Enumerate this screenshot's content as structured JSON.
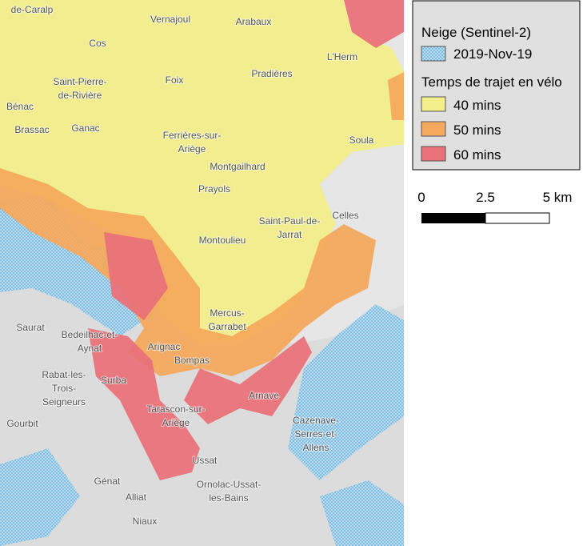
{
  "legend": {
    "snow_title": "Neige (Sentinel-2)",
    "snow_item": "2019-Nov-19",
    "travel_title": "Temps de trajet en vélo",
    "items": [
      "40 mins",
      "50 mins",
      "60 mins"
    ]
  },
  "scale": {
    "labels": [
      "0",
      "2.5",
      "5 km"
    ]
  },
  "places": [
    [
      "de-Caralp"
    ],
    [
      "Vernajoul"
    ],
    [
      "Arabaux"
    ],
    [
      "Cos"
    ],
    [
      "L'Herm"
    ],
    [
      "Saint-Pierre-",
      "de-Rivière"
    ],
    [
      "Foix"
    ],
    [
      "Pradières"
    ],
    [
      "Bénac"
    ],
    [
      "Brassac"
    ],
    [
      "Ganac"
    ],
    [
      "Ferrières-sur-",
      "Ariège"
    ],
    [
      "Soula"
    ],
    [
      "Montgailhard"
    ],
    [
      "Prayols"
    ],
    [
      "Saint-Paul-de-",
      "Jarrat"
    ],
    [
      "Celles"
    ],
    [
      "Montoulieu"
    ],
    [
      "Mercus-",
      "Garrabet"
    ],
    [
      "Saurat"
    ],
    [
      "Bedeilhac-et-",
      "Aynat"
    ],
    [
      "Arignac"
    ],
    [
      "Bompas"
    ],
    [
      "Rabat-les-",
      "Trois-",
      "Seigneurs"
    ],
    [
      "Surba"
    ],
    [
      "Arnave"
    ],
    [
      "Tarascon-sur-",
      "Ariège"
    ],
    [
      "Gourbit"
    ],
    [
      "Cazenave-",
      "Serres-et-",
      "Allens"
    ],
    [
      "Ussat"
    ],
    [
      "Génat"
    ],
    [
      "Ornolac-Ussat-",
      "les-Bains"
    ],
    [
      "Alliat"
    ],
    [
      "Niaux"
    ]
  ]
}
